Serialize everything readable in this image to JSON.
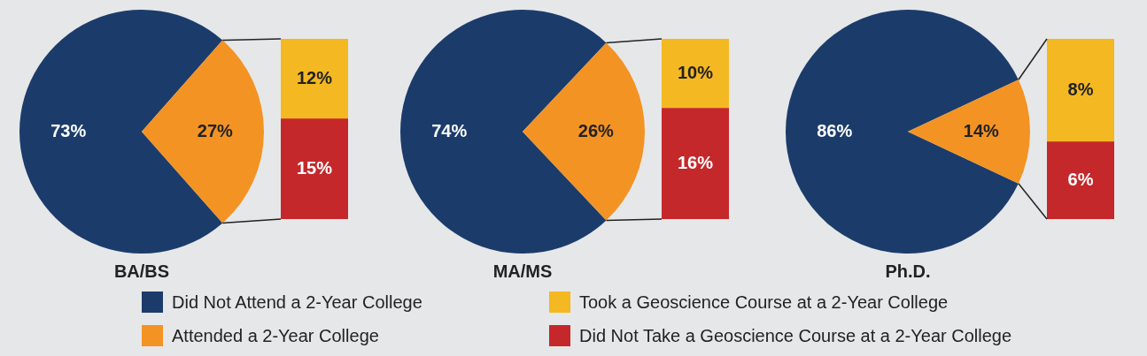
{
  "chart_data": [
    {
      "type": "pie",
      "title": "BA/BS",
      "categories": [
        "Did Not Attend a 2-Year College",
        "Attended a 2-Year College"
      ],
      "values": [
        73,
        27
      ],
      "colors": [
        "#1b3c6b",
        "#f39323"
      ],
      "value_labels": [
        "73%",
        "27%"
      ],
      "legend": "bottom"
    },
    {
      "type": "bar",
      "stacked": true,
      "categories": [
        null
      ],
      "series": [
        {
          "name": "Did Not Take a Geoscience Course at a 2-Year College",
          "color": "#c4282b",
          "values": [
            15
          ],
          "value_labels": [
            "15%"
          ]
        },
        {
          "name": "Took a Geoscience Course at a 2-Year College",
          "color": "#f4b822",
          "values": [
            12
          ],
          "value_labels": [
            "12%"
          ]
        }
      ],
      "legend": "bottom"
    },
    {
      "type": "pie",
      "title": "MA/MS",
      "categories": [
        null,
        null
      ],
      "values": [
        74,
        26
      ],
      "colors": [
        "#1b3c6b",
        "#f39323"
      ],
      "value_labels": [
        "74%",
        "26%"
      ]
    },
    {
      "type": "bar",
      "stacked": true,
      "categories": [
        null
      ],
      "series": [
        {
          "color": "#c4282b",
          "values": [
            16
          ],
          "value_labels": [
            "16%"
          ]
        },
        {
          "color": "#f4b822",
          "values": [
            10
          ],
          "value_labels": [
            "10%"
          ]
        }
      ]
    },
    {
      "type": "pie",
      "title": "Ph.D.",
      "categories": [
        null,
        null
      ],
      "values": [
        86,
        14
      ],
      "colors": [
        "#1b3c6b",
        "#f39323"
      ],
      "value_labels": [
        "86%",
        "14%"
      ]
    },
    {
      "type": "bar",
      "stacked": true,
      "categories": [
        null
      ],
      "series": [
        {
          "color": "#c4282b",
          "values": [
            6
          ],
          "value_labels": [
            "6%"
          ]
        },
        {
          "color": "#f4b822",
          "values": [
            8
          ],
          "value_labels": [
            "8%"
          ]
        }
      ]
    }
  ]
}
